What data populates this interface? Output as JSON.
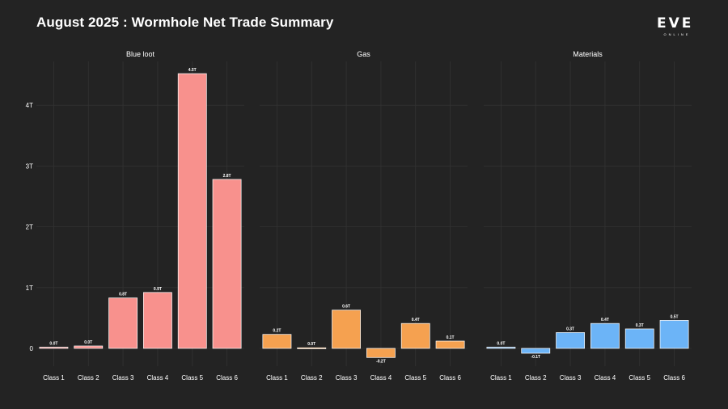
{
  "title": "August 2025 : Wormhole Net Trade Summary",
  "logo": {
    "word": "EVE",
    "sub": "ONLINE"
  },
  "chart_data": {
    "type": "bar",
    "title": "August 2025 : Wormhole Net Trade Summary",
    "xlabel": "",
    "ylabel": "",
    "ylim": [
      -0.3,
      4.6
    ],
    "yticks": [
      0,
      1,
      2,
      3,
      4
    ],
    "ytick_labels": [
      "0",
      "1T",
      "2T",
      "3T",
      "4T"
    ],
    "grid": true,
    "categories": [
      "Class 1",
      "Class 2",
      "Class 3",
      "Class 4",
      "Class 5",
      "Class 6"
    ],
    "panels": [
      {
        "name": "Blue loot",
        "color": "#f8918d",
        "values": [
          0.02,
          0.04,
          0.83,
          0.92,
          4.52,
          2.78
        ],
        "labels": [
          "0.0T",
          "0.0T",
          "0.8T",
          "0.9T",
          "4.5T",
          "2.8T"
        ]
      },
      {
        "name": "Gas",
        "color": "#f5a150",
        "values": [
          0.23,
          0.01,
          0.63,
          -0.15,
          0.41,
          0.12
        ],
        "labels": [
          "0.2T",
          "0.0T",
          "0.6T",
          "-0.2T",
          "0.4T",
          "0.1T"
        ]
      },
      {
        "name": "Materials",
        "color": "#6cb4f7",
        "values": [
          0.02,
          -0.08,
          0.26,
          0.41,
          0.32,
          0.46
        ],
        "labels": [
          "0.0T",
          "-0.1T",
          "0.3T",
          "0.4T",
          "0.3T",
          "0.5T"
        ]
      }
    ]
  }
}
